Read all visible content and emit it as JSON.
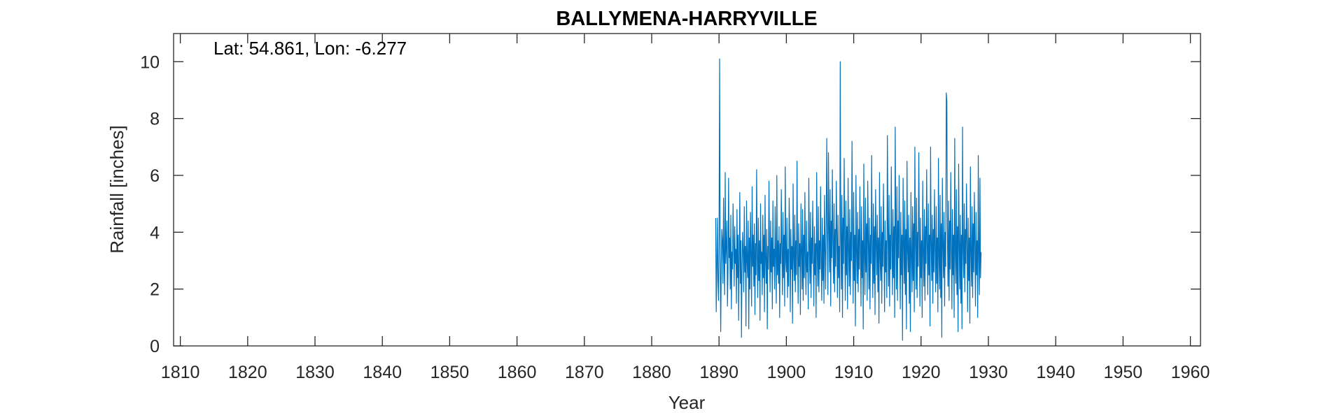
{
  "chart_data": {
    "type": "line",
    "title": "BALLYMENA-HARRYVILLE",
    "xlabel": "Year",
    "ylabel": "Rainfall [inches]",
    "annotation": "Lat: 54.861, Lon: -6.277",
    "xlim": [
      1809,
      1961.5
    ],
    "ylim": [
      0,
      10.99
    ],
    "x_ticks": [
      1810,
      1820,
      1830,
      1840,
      1850,
      1860,
      1870,
      1880,
      1890,
      1900,
      1910,
      1920,
      1930,
      1940,
      1950,
      1960
    ],
    "y_ticks": [
      0,
      2,
      4,
      6,
      8,
      10
    ],
    "grid": false,
    "legend": "none",
    "series": [
      {
        "color": "#0072BD",
        "x_start": 1889.5,
        "x_step": 0.08333,
        "values": [
          4.5,
          1.2,
          2.8,
          4.5,
          2.3,
          1.6,
          3.8,
          10.1,
          3.2,
          0.5,
          2.9,
          4.1,
          3.7,
          2.2,
          5.2,
          3.0,
          1.8,
          6.1,
          2.9,
          3.5,
          4.4,
          1.4,
          2.6,
          5.9,
          3.1,
          3.8,
          2.0,
          4.6,
          1.3,
          3.3,
          2.7,
          5.0,
          3.6,
          2.1,
          4.2,
          2.9,
          3.4,
          1.5,
          4.8,
          2.4,
          3.9,
          0.9,
          3.1,
          5.4,
          2.2,
          3.7,
          0.3,
          2.8,
          4.0,
          3.3,
          1.9,
          4.9,
          2.6,
          3.5,
          0.7,
          5.1,
          3.0,
          2.4,
          4.4,
          0.6,
          3.8,
          2.0,
          4.7,
          3.2,
          1.4,
          5.6,
          2.8,
          3.9,
          2.1,
          4.3,
          1.1,
          3.6,
          2.5,
          6.2,
          3.1,
          1.7,
          4.5,
          2.3,
          3.7,
          0.9,
          5.0,
          2.9,
          3.3,
          1.8,
          4.6,
          2.4,
          3.9,
          1.2,
          5.3,
          3.0,
          2.2,
          4.1,
          0.6,
          3.5,
          2.7,
          5.8,
          3.2,
          1.9,
          4.4,
          2.6,
          3.8,
          1.3,
          5.1,
          2.8,
          3.4,
          2.0,
          4.9,
          3.1,
          1.5,
          6.0,
          2.5,
          3.7,
          2.2,
          4.2,
          1.0,
          3.6,
          2.9,
          5.5,
          3.3,
          1.8,
          4.7,
          2.4,
          3.9,
          1.4,
          6.3,
          3.0,
          2.6,
          4.5,
          1.7,
          3.4,
          2.1,
          5.2,
          3.8,
          1.2,
          4.1,
          2.7,
          3.5,
          0.8,
          5.7,
          3.1,
          2.3,
          4.6,
          1.9,
          3.7,
          2.5,
          6.5,
          3.2,
          1.5,
          4.3,
          2.8,
          3.6,
          1.1,
          5.0,
          3.4,
          2.0,
          4.8,
          1.6,
          3.9,
          2.4,
          5.4,
          3.0,
          1.8,
          4.4,
          2.6,
          3.3,
          1.3,
          5.9,
          3.5,
          2.2,
          4.7,
          1.7,
          3.8,
          2.9,
          5.1,
          3.1,
          1.4,
          4.2,
          2.5,
          3.6,
          1.0,
          6.1,
          3.3,
          2.1,
          4.9,
          1.9,
          3.7,
          2.7,
          5.6,
          3.0,
          1.6,
          4.5,
          2.3,
          3.9,
          1.5,
          5.3,
          3.4,
          2.0,
          4.3,
          7.3,
          3.8,
          1.8,
          6.8,
          4.2,
          2.6,
          5.5,
          1.4,
          4.4,
          3.1,
          6.2,
          3.6,
          2.2,
          5.0,
          1.9,
          4.1,
          2.8,
          5.8,
          3.9,
          1.7,
          4.6,
          2.4,
          3.5,
          1.2,
          10.0,
          4.0,
          2.0,
          5.3,
          1.0,
          4.5,
          2.9,
          6.6,
          3.7,
          1.6,
          5.1,
          2.5,
          4.2,
          1.3,
          5.9,
          3.4,
          2.1,
          4.8,
          1.8,
          4.0,
          3.0,
          7.2,
          3.6,
          1.5,
          5.4,
          2.3,
          3.9,
          0.7,
          6.0,
          3.3,
          2.2,
          4.7,
          1.9,
          4.1,
          2.7,
          5.6,
          3.5,
          1.4,
          4.9,
          2.4,
          3.7,
          0.6,
          6.4,
          3.2,
          1.8,
          5.2,
          2.6,
          4.3,
          1.6,
          5.8,
          3.8,
          2.0,
          4.5,
          1.3,
          3.9,
          2.9,
          6.7,
          3.4,
          1.7,
          5.0,
          2.2,
          4.2,
          1.1,
          5.5,
          3.6,
          2.5,
          4.6,
          1.9,
          3.8,
          0.8,
          6.1,
          3.1,
          2.3,
          4.9,
          1.5,
          4.0,
          2.8,
          5.7,
          3.5,
          1.2,
          4.4,
          2.6,
          3.7,
          1.7,
          7.4,
          4.1,
          2.1,
          5.3,
          1.4,
          3.9,
          2.7,
          6.3,
          3.6,
          1.8,
          4.8,
          2.4,
          4.2,
          1.0,
          7.7,
          3.8,
          2.0,
          5.6,
          1.6,
          4.4,
          3.1,
          6.0,
          3.3,
          1.3,
          4.7,
          2.5,
          3.9,
          0.2,
          5.9,
          3.7,
          2.2,
          5.1,
          1.8,
          4.1,
          0.6,
          6.5,
          3.4,
          2.6,
          4.6,
          1.5,
          3.8,
          0.5,
          5.4,
          3.2,
          1.9,
          4.9,
          2.3,
          4.3,
          1.2,
          7.0,
          3.6,
          2.0,
          5.2,
          1.7,
          4.0,
          2.8,
          6.8,
          3.9,
          1.4,
          4.5,
          2.4,
          3.7,
          1.0,
          5.8,
          3.3,
          2.1,
          4.8,
          1.6,
          4.2,
          2.9,
          6.2,
          3.5,
          1.8,
          5.0,
          2.5,
          3.9,
          0.7,
          7.0,
          3.7,
          2.3,
          4.6,
          1.5,
          4.1,
          2.6,
          5.5,
          3.4,
          1.9,
          4.9,
          2.2,
          3.8,
          1.2,
          6.6,
          3.1,
          2.0,
          5.3,
          1.7,
          4.3,
          0.3,
          5.9,
          3.6,
          2.4,
          4.7,
          1.4,
          4.0,
          2.8,
          8.9,
          8.6,
          3.8,
          2.1,
          5.1,
          1.6,
          4.4,
          2.7,
          6.1,
          3.5,
          1.3,
          4.8,
          2.5,
          3.9,
          1.0,
          7.3,
          3.2,
          2.2,
          5.5,
          1.8,
          4.2,
          0.5,
          6.4,
          3.7,
          2.0,
          4.6,
          1.5,
          3.9,
          0.6,
          7.7,
          3.4,
          2.4,
          5.0,
          1.9,
          4.1,
          2.9,
          5.7,
          3.6,
          1.2,
          4.5,
          2.3,
          3.8,
          0.8,
          6.3,
          3.3,
          2.1,
          4.9,
          1.7,
          4.3,
          2.6,
          5.4,
          3.5,
          1.4,
          4.7,
          2.5,
          3.7,
          1.0,
          6.7,
          3.1,
          1.8,
          5.9,
          2.4,
          3.3
        ]
      }
    ]
  }
}
